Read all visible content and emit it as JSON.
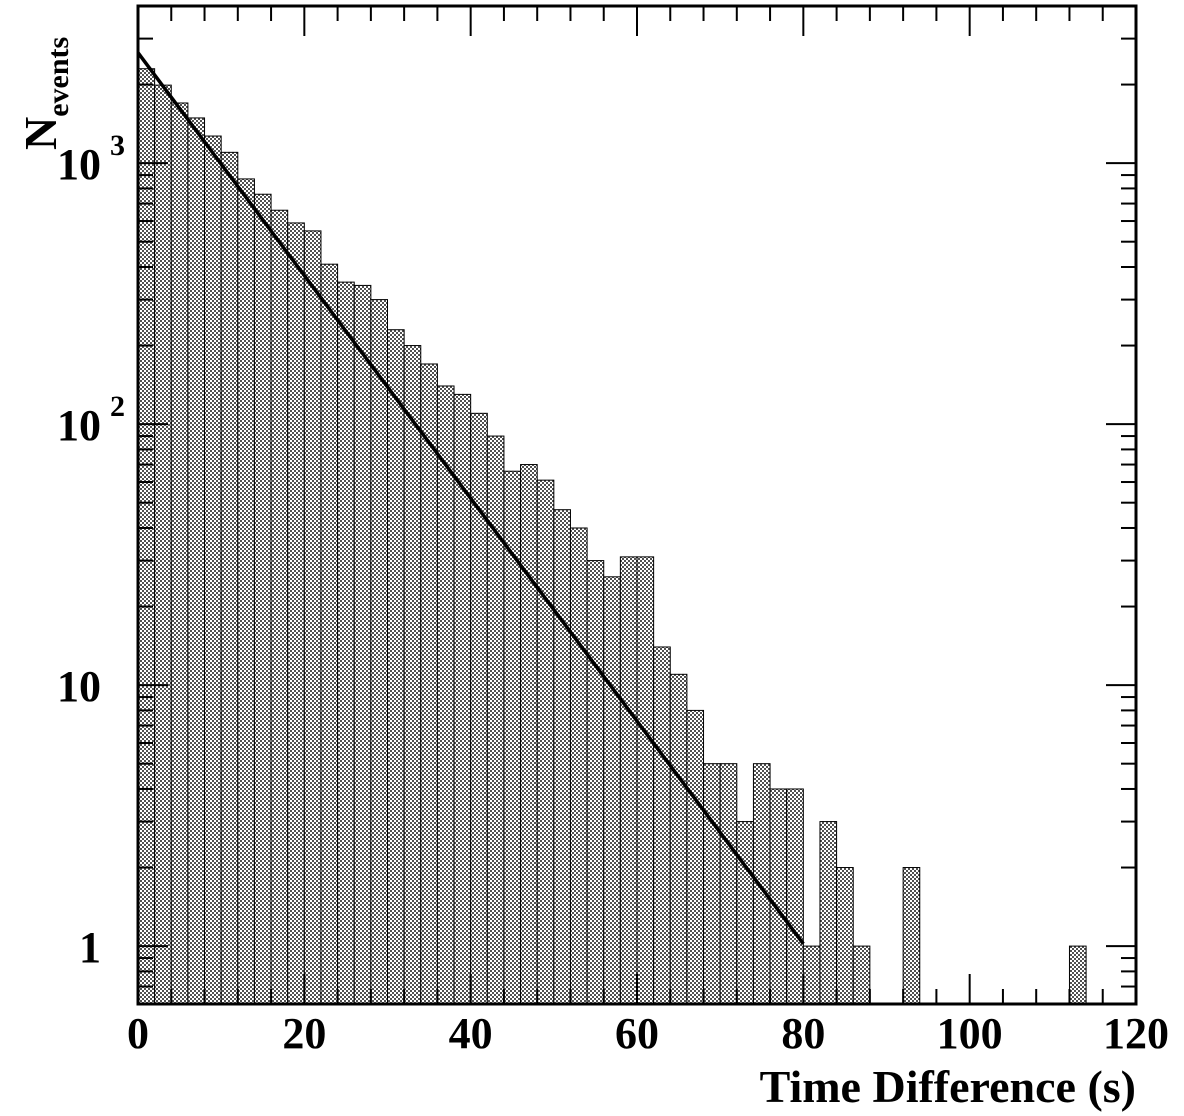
{
  "chart_data": {
    "type": "bar",
    "xlabel": "Time Difference (s)",
    "ylabel": {
      "main": "N",
      "sub": "events"
    },
    "xlim": [
      0,
      120
    ],
    "ylim": [
      0.6,
      4000
    ],
    "y_scale": "log",
    "x_ticks": [
      "0",
      "20",
      "40",
      "60",
      "80",
      "100",
      "120"
    ],
    "y_ticks": [
      {
        "value": 1,
        "base": "1",
        "exp": ""
      },
      {
        "value": 10,
        "base": "10",
        "exp": ""
      },
      {
        "value": 100,
        "base": "10",
        "exp": "2"
      },
      {
        "value": 1000,
        "base": "10",
        "exp": "3"
      }
    ],
    "bin_width": 2,
    "bin_edges_start": 0,
    "values": [
      2300,
      1990,
      1700,
      1490,
      1270,
      1100,
      870,
      760,
      660,
      590,
      550,
      410,
      350,
      340,
      300,
      230,
      200,
      170,
      140,
      130,
      110,
      90,
      66,
      70,
      61,
      47,
      40,
      30,
      26,
      31,
      31,
      14,
      11,
      8,
      5,
      5,
      3,
      5,
      4,
      4,
      1,
      3,
      2,
      1,
      0,
      0,
      2,
      0,
      0,
      0,
      0,
      0,
      0,
      0,
      0,
      0,
      1
    ],
    "fit_line": {
      "x": [
        0,
        80
      ],
      "y": [
        2650,
        1.02
      ]
    },
    "fill_color": "#8c8c8c",
    "line_color": "#000000"
  }
}
